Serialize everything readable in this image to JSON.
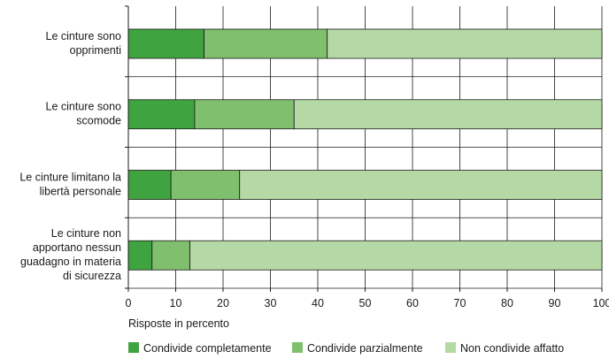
{
  "chart_data": {
    "type": "bar",
    "orientation": "horizontal",
    "stacked": true,
    "categories": [
      [
        "Le cinture sono",
        "opprimenti"
      ],
      [
        "Le cinture sono",
        "scomode"
      ],
      [
        "Le cinture limitano la",
        "libertà personale"
      ],
      [
        "Le cinture non",
        "apportano nessun",
        "guadagno in materia",
        "di sicurezza"
      ]
    ],
    "series": [
      {
        "name": "Condivide completamente",
        "color": "#3fa43f",
        "values": [
          16,
          14,
          9,
          5
        ]
      },
      {
        "name": "Condivide parzialmente",
        "color": "#7fbf6e",
        "values": [
          26,
          21,
          14.5,
          8
        ]
      },
      {
        "name": "Non condivide affatto",
        "color": "#b5d9a4",
        "values": [
          58,
          65,
          76.5,
          87
        ]
      }
    ],
    "xlabel": "Risposte in percento",
    "ylabel": "",
    "xlim": [
      0,
      100
    ],
    "xticks": [
      0,
      10,
      20,
      30,
      40,
      50,
      60,
      70,
      80,
      90,
      100
    ],
    "grid": true,
    "legend_position": "bottom"
  }
}
